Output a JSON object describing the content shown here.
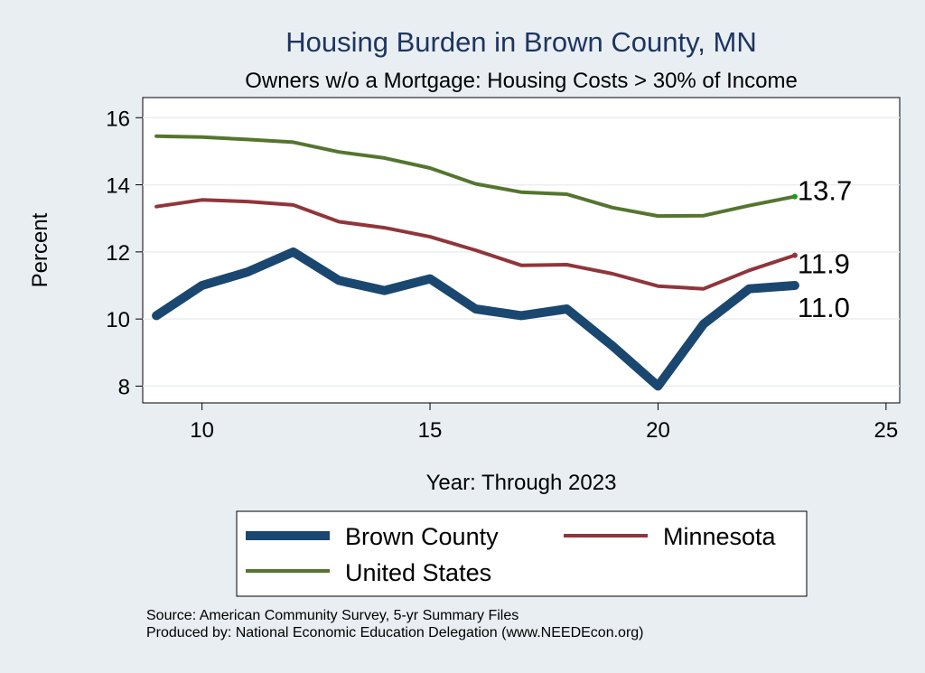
{
  "chart_data": {
    "type": "line",
    "title": "Housing Burden in Brown County, MN",
    "subtitle": "Owners w/o a Mortgage: Housing Costs > 30% of Income",
    "xlabel": "Year: Through 2023",
    "ylabel": "Percent",
    "xlim": [
      8.7,
      25.3
    ],
    "ylim": [
      7.5,
      16.6
    ],
    "xticks": [
      10,
      15,
      20,
      25
    ],
    "yticks": [
      8,
      10,
      12,
      14,
      16
    ],
    "grid": true,
    "legend": "bottom",
    "x": [
      9,
      10,
      11,
      12,
      13,
      14,
      15,
      16,
      17,
      18,
      19,
      20,
      21,
      22,
      23
    ],
    "series": [
      {
        "name": "Brown County",
        "color": "#1a476f",
        "values": [
          10.1,
          11.0,
          11.4,
          12.0,
          11.15,
          10.85,
          11.2,
          10.3,
          10.1,
          10.3,
          9.2,
          8.0,
          9.85,
          10.9,
          11.0
        ],
        "end_label": "11.0"
      },
      {
        "name": "Minnesota",
        "color": "#90353b",
        "values": [
          13.35,
          13.55,
          13.5,
          13.4,
          12.9,
          12.72,
          12.45,
          12.05,
          11.6,
          11.62,
          11.35,
          10.98,
          10.9,
          11.45,
          11.9
        ],
        "end_label": "11.9"
      },
      {
        "name": "United States",
        "color": "#55752f",
        "values": [
          15.45,
          15.42,
          15.35,
          15.27,
          14.98,
          14.8,
          14.5,
          14.03,
          13.78,
          13.72,
          13.32,
          13.07,
          13.08,
          13.38,
          13.65
        ],
        "end_label": "13.7"
      }
    ]
  },
  "footer": {
    "source": "Source: American Community Survey, 5-yr Summary Files",
    "produced_by": "Produced by: National Economic Education Delegation (www.NEEDEcon.org)"
  }
}
